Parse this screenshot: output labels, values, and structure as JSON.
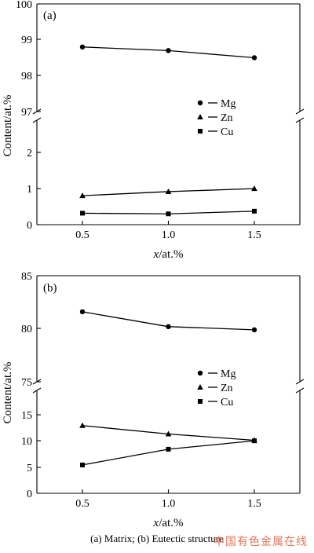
{
  "chart_data": [
    {
      "type": "line",
      "panel_label": "(a)",
      "x": [
        0.5,
        1.0,
        1.5
      ],
      "x_ticks": [
        "0.5",
        "1.0",
        "1.5"
      ],
      "xlabel_italic": "x",
      "xlabel_rest": "/at.%",
      "ylabel": "Content/at.%",
      "axis_break": true,
      "upper_ylim": [
        97,
        100
      ],
      "upper_yticks": [
        "97",
        "98",
        "99",
        "100"
      ],
      "lower_ylim": [
        0,
        3
      ],
      "lower_yticks": [
        "0",
        "1",
        "2"
      ],
      "series": [
        {
          "name": "Mg",
          "marker": "circle",
          "values": [
            98.8,
            98.7,
            98.5
          ]
        },
        {
          "name": "Zn",
          "marker": "triangle",
          "values": [
            0.86,
            0.98,
            1.07
          ]
        },
        {
          "name": "Cu",
          "marker": "square",
          "values": [
            0.34,
            0.32,
            0.4
          ]
        }
      ],
      "legend_position": "right-middle",
      "grid": false
    },
    {
      "type": "line",
      "panel_label": "(b)",
      "x": [
        0.5,
        1.0,
        1.5
      ],
      "x_ticks": [
        "0.5",
        "1.0",
        "1.5"
      ],
      "xlabel_italic": "x",
      "xlabel_rest": "/at.%",
      "ylabel": "Content/at.%",
      "axis_break": true,
      "upper_ylim": [
        75,
        85
      ],
      "upper_yticks": [
        "75",
        "80",
        "85"
      ],
      "lower_ylim": [
        0,
        18
      ],
      "lower_yticks": [
        "0",
        "5",
        "10",
        "15"
      ],
      "series": [
        {
          "name": "Mg",
          "marker": "circle",
          "values": [
            81.6,
            80.2,
            79.9
          ]
        },
        {
          "name": "Zn",
          "marker": "triangle",
          "values": [
            12.9,
            11.3,
            10.1
          ]
        },
        {
          "name": "Cu",
          "marker": "square",
          "values": [
            5.4,
            8.4,
            10.0
          ]
        }
      ],
      "legend_position": "right-middle",
      "grid": false
    }
  ],
  "caption": "(a) Matrix; (b) Eutectic structure",
  "watermark": "中国有色金属在线"
}
